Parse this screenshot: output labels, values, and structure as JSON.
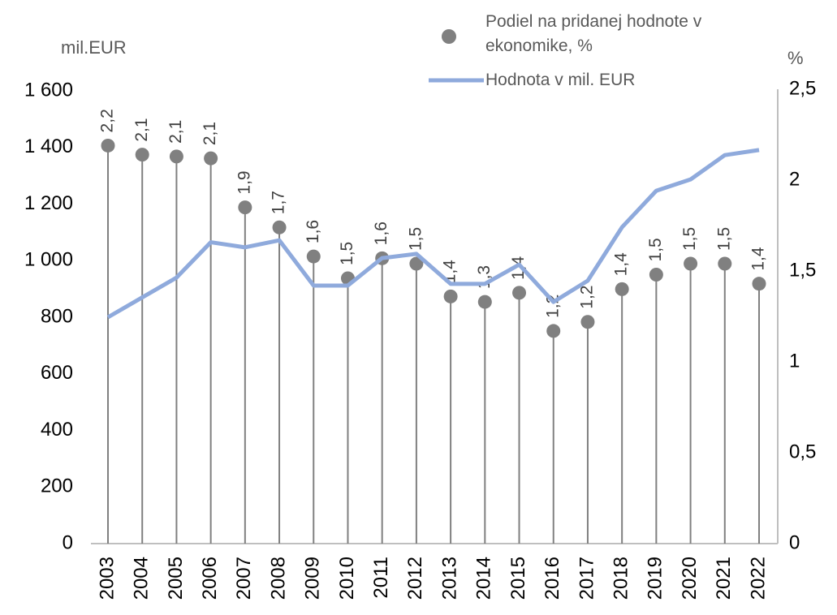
{
  "chart_data": {
    "type": "line",
    "y_label": "mil.EUR",
    "y2_label": "%",
    "categories": [
      "2003",
      "2004",
      "2005",
      "2006",
      "2007",
      "2008",
      "2009",
      "2010",
      "2011",
      "2012",
      "2013",
      "2014",
      "2015",
      "2016",
      "2017",
      "2018",
      "2019",
      "2020",
      "2021",
      "2022"
    ],
    "series": [
      {
        "name": "Podiel na pridanej hodnote v ekonomike, %",
        "type": "scatter",
        "axis": "y2",
        "color": "#808080",
        "values": [
          2.19,
          2.14,
          2.13,
          2.12,
          1.85,
          1.74,
          1.58,
          1.46,
          1.57,
          1.54,
          1.36,
          1.33,
          1.38,
          1.17,
          1.22,
          1.4,
          1.48,
          1.54,
          1.54,
          1.43
        ],
        "value_labels": [
          "2,2",
          "2,1",
          "2,1",
          "2,1",
          "1,9",
          "1,7",
          "1,6",
          "1,5",
          "1,6",
          "1,5",
          "1,4",
          "1,3",
          "1,4",
          "1,2",
          "1,2",
          "1,4",
          "1,5",
          "1,5",
          "1,5",
          "1,4"
        ]
      },
      {
        "name": "Hodnota v mil. EUR",
        "type": "line",
        "axis": "y",
        "color": "#8faadc",
        "values": [
          800,
          870,
          940,
          1065,
          1047,
          1072,
          912,
          912,
          1009,
          1024,
          918,
          918,
          986,
          854,
          929,
          1118,
          1247,
          1287,
          1373,
          1391
        ]
      }
    ],
    "ylim": [
      0,
      1600
    ],
    "yticks": [
      0,
      200,
      400,
      600,
      800,
      {
        "value": 1000,
        "label": "1 000"
      },
      {
        "value": 1200,
        "label": "1 200"
      },
      {
        "value": 1400,
        "label": "1 400"
      },
      {
        "value": 1600,
        "label": "1 600"
      }
    ],
    "y2lim": [
      0,
      2.5
    ],
    "y2ticks": [
      0,
      {
        "value": 0.5,
        "label": "0,5"
      },
      1,
      {
        "value": 1.5,
        "label": "1,5"
      },
      2,
      {
        "value": 2.5,
        "label": "2,5"
      }
    ]
  }
}
